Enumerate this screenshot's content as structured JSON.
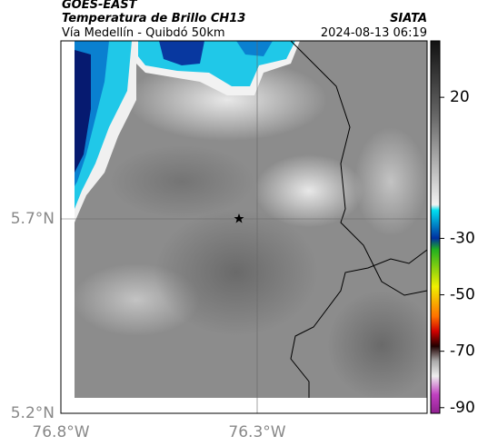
{
  "header": {
    "title": "GOES-EAST",
    "subtitle": "Temperatura de Brillo CH13",
    "location": "Vía Medellín - Quibdó 50km",
    "source": "SIATA",
    "datetime": "2024-08-13 06:19"
  },
  "map": {
    "yticks": [
      "5.7°N",
      "5.2°N"
    ],
    "xticks": [
      "76.8°W",
      "76.3°W"
    ]
  },
  "colorbar": {
    "ticks": [
      20,
      -30,
      -50,
      -70,
      -90
    ],
    "range": [
      40,
      -92
    ]
  }
}
